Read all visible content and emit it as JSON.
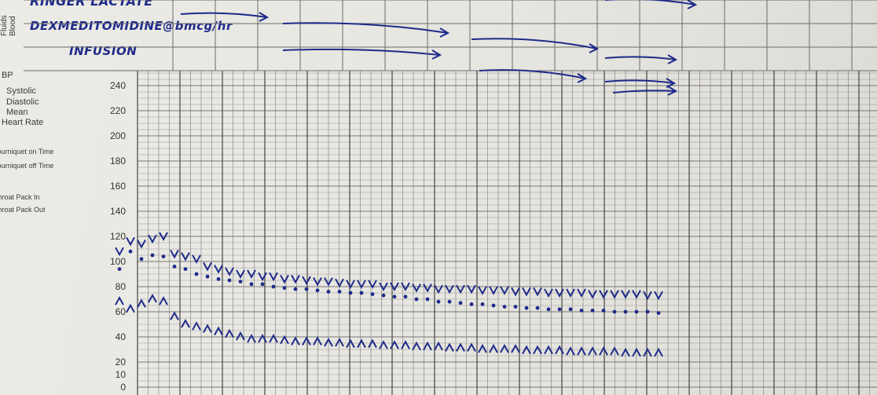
{
  "header": {
    "rotated_labels": [
      "Fluids",
      "Blood"
    ],
    "fluid_rows": [
      "RINGER LACTATE",
      "DEXMEDITOMIDINE@bmcg/hr",
      "INFUSION"
    ]
  },
  "legend": {
    "bp_title": "BP",
    "systolic": "Systolic",
    "diastolic": "Diastolic",
    "mean": "Mean",
    "heart_rate": "Heart Rate",
    "tourniquet_on": "Tourniquet on Time",
    "tourniquet_off": "Tourniquet off Time",
    "pack_in": "Throat Pack In",
    "pack_out": "Throat Pack Out"
  },
  "colors": {
    "ink": "#1e2a8a",
    "grid": "#6b6b6b",
    "paper": "#e9e8e2"
  },
  "chart_data": {
    "type": "scatter",
    "title": "",
    "xlabel": "",
    "ylabel": "",
    "ylim": [
      0,
      240
    ],
    "yticks": [
      0,
      10,
      20,
      40,
      60,
      80,
      100,
      120,
      140,
      160,
      180,
      200,
      220,
      240
    ],
    "grid": true,
    "x": [
      1,
      2,
      3,
      4,
      5,
      6,
      7,
      8,
      9,
      10,
      11,
      12,
      13,
      14,
      15,
      16,
      17,
      18,
      19,
      20,
      21,
      22,
      23,
      24,
      25,
      26,
      27,
      28,
      29,
      30,
      31,
      32,
      33,
      34,
      35,
      36,
      37,
      38,
      39,
      40,
      41,
      42,
      43,
      44,
      45,
      46,
      47,
      48,
      49,
      50
    ],
    "series": [
      {
        "marker": "v",
        "values": [
          108,
          116,
          114,
          118,
          120,
          106,
          104,
          102,
          96,
          94,
          92,
          90,
          90,
          88,
          88,
          86,
          86,
          85,
          84,
          84,
          83,
          82,
          82,
          82,
          80,
          80,
          80,
          79,
          79,
          78,
          78,
          78,
          78,
          77,
          77,
          77,
          76,
          76,
          76,
          75,
          75,
          75,
          75,
          74,
          74,
          74,
          74,
          74,
          73,
          73
        ]
      },
      {
        "marker": "dot",
        "values": [
          94,
          108,
          102,
          105,
          104,
          96,
          94,
          90,
          88,
          86,
          85,
          84,
          82,
          82,
          80,
          79,
          78,
          78,
          77,
          76,
          76,
          75,
          75,
          74,
          73,
          72,
          72,
          70,
          70,
          68,
          68,
          67,
          66,
          66,
          65,
          64,
          64,
          63,
          63,
          62,
          62,
          62,
          61,
          61,
          61,
          60,
          60,
          60,
          60,
          59
        ]
      },
      {
        "marker": "^",
        "values": [
          68,
          62,
          66,
          70,
          68,
          56,
          50,
          48,
          46,
          44,
          42,
          40,
          38,
          38,
          38,
          37,
          36,
          36,
          36,
          35,
          35,
          34,
          34,
          34,
          33,
          33,
          33,
          32,
          32,
          32,
          31,
          31,
          31,
          30,
          30,
          30,
          30,
          29,
          29,
          29,
          29,
          28,
          28,
          28,
          28,
          28,
          27,
          27,
          27,
          27
        ]
      }
    ]
  }
}
